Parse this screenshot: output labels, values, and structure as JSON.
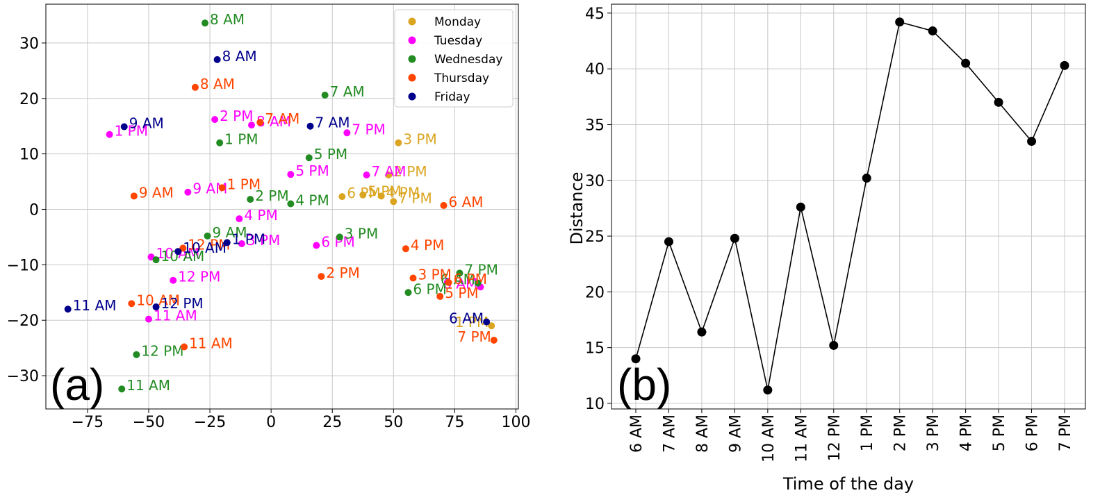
{
  "chart_data": [
    {
      "type": "scatter",
      "panel_label": "(a)",
      "xlim": [
        -92,
        101
      ],
      "ylim": [
        -36,
        37
      ],
      "xticks": [
        -75,
        -50,
        -25,
        0,
        25,
        50,
        75,
        100
      ],
      "yticks": [
        -30,
        -20,
        -10,
        0,
        10,
        20,
        30
      ],
      "grid": true,
      "legend_position": "top-right",
      "series": [
        {
          "name": "Monday",
          "color": "#DAA520",
          "points": [
            {
              "label": "3 PM",
              "x": 52,
              "y": 12
            },
            {
              "label": "2 PM",
              "x": 48,
              "y": 6.2
            },
            {
              "label": "6 PM",
              "x": 29,
              "y": 2.3
            },
            {
              "label": "5 PM",
              "x": 37.5,
              "y": 2.6
            },
            {
              "label": "4 PM",
              "x": 45,
              "y": 2.4
            },
            {
              "label": "7 PM",
              "x": 50,
              "y": 1.4
            },
            {
              "label": "1 PM",
              "x": 90,
              "y": -21
            }
          ]
        },
        {
          "name": "Tuesday",
          "color": "#FF00FF",
          "points": [
            {
              "label": "1 PM",
              "x": -66,
              "y": 13.5
            },
            {
              "label": "2 PM",
              "x": -23,
              "y": 16.2
            },
            {
              "label": "8 AM",
              "x": -8,
              "y": 15.2
            },
            {
              "label": "7 PM",
              "x": 31,
              "y": 13.8
            },
            {
              "label": "5 PM",
              "x": 8,
              "y": 6.3
            },
            {
              "label": "7 AM",
              "x": 39,
              "y": 6.2
            },
            {
              "label": "9 AM",
              "x": -34,
              "y": 3.1
            },
            {
              "label": "4 PM",
              "x": -13,
              "y": -1.7
            },
            {
              "label": "3 PM",
              "x": -12,
              "y": -6.2
            },
            {
              "label": "6 PM",
              "x": 18.5,
              "y": -6.5
            },
            {
              "label": "10 AM",
              "x": -49,
              "y": -8.6
            },
            {
              "label": "12 PM",
              "x": -40,
              "y": -12.8
            },
            {
              "label": "11 AM",
              "x": -50,
              "y": -19.8
            },
            {
              "label": "6 AM",
              "x": 85.5,
              "y": -14
            }
          ]
        },
        {
          "name": "Wednesday",
          "color": "#228B22",
          "points": [
            {
              "label": "8 AM",
              "x": -27,
              "y": 33.6
            },
            {
              "label": "7 AM",
              "x": 22,
              "y": 20.6
            },
            {
              "label": "1 PM",
              "x": -21,
              "y": 12
            },
            {
              "label": "5 PM",
              "x": 15.5,
              "y": 9.3
            },
            {
              "label": "2 PM",
              "x": -8.5,
              "y": 1.8
            },
            {
              "label": "4 PM",
              "x": 8,
              "y": 1
            },
            {
              "label": "9 AM",
              "x": -26,
              "y": -4.8
            },
            {
              "label": "3 PM",
              "x": 28,
              "y": -5
            },
            {
              "label": "10 AM",
              "x": -47,
              "y": -9.1
            },
            {
              "label": "7 PM",
              "x": 77,
              "y": -11.5
            },
            {
              "label": "6 AM",
              "x": 84.5,
              "y": -13.3
            },
            {
              "label": "6 PM",
              "x": 56,
              "y": -15
            },
            {
              "label": "12 PM",
              "x": -55,
              "y": -26.2
            },
            {
              "label": "11 AM",
              "x": -61,
              "y": -32.4
            }
          ]
        },
        {
          "name": "Thursday",
          "color": "#FF4500",
          "points": [
            {
              "label": "8 AM",
              "x": -31,
              "y": 22
            },
            {
              "label": "7 AM",
              "x": -4.5,
              "y": 15.7
            },
            {
              "label": "9 AM",
              "x": -56,
              "y": 2.4
            },
            {
              "label": "1 PM",
              "x": -20,
              "y": 3.9
            },
            {
              "label": "6 AM",
              "x": 70.5,
              "y": 0.7
            },
            {
              "label": "12 PM",
              "x": -36,
              "y": -7
            },
            {
              "label": "4 PM",
              "x": 55,
              "y": -7.1
            },
            {
              "label": "2 PM",
              "x": 20.5,
              "y": -12.1
            },
            {
              "label": "3 PM",
              "x": 58,
              "y": -12.4
            },
            {
              "label": "6 PM",
              "x": 72.5,
              "y": -13.2
            },
            {
              "label": "5 PM",
              "x": 69,
              "y": -15.7
            },
            {
              "label": "10 AM",
              "x": -57,
              "y": -17
            },
            {
              "label": "11 AM",
              "x": -35.5,
              "y": -24.8
            },
            {
              "label": "7 PM",
              "x": 91,
              "y": -23.6
            }
          ]
        },
        {
          "name": "Friday",
          "color": "#00008B",
          "points": [
            {
              "label": "8 AM",
              "x": -22,
              "y": 27
            },
            {
              "label": "9 AM",
              "x": -60,
              "y": 14.9
            },
            {
              "label": "7 AM",
              "x": 16,
              "y": 15
            },
            {
              "label": "1 PM",
              "x": -18,
              "y": -6
            },
            {
              "label": "10 AM",
              "x": -38,
              "y": -7.6
            },
            {
              "label": "12 PM",
              "x": -47,
              "y": -17.6
            },
            {
              "label": "11 AM",
              "x": -83,
              "y": -18
            },
            {
              "label": "6 AM",
              "x": 88,
              "y": -20.3
            }
          ]
        }
      ]
    },
    {
      "type": "line",
      "panel_label": "(b)",
      "xlabel": "Time of the day",
      "ylabel": "Distance",
      "ylim": [
        9.5,
        45.8
      ],
      "yticks": [
        10,
        15,
        20,
        25,
        30,
        35,
        40,
        45
      ],
      "grid": true,
      "color": "#000000",
      "categories": [
        "6 AM",
        "7 AM",
        "8 AM",
        "9 AM",
        "10 AM",
        "11 AM",
        "12 PM",
        "1 PM",
        "2 PM",
        "3 PM",
        "4 PM",
        "5 PM",
        "6 PM",
        "7 PM"
      ],
      "values": [
        14.0,
        24.5,
        16.4,
        24.8,
        11.2,
        27.6,
        15.2,
        30.2,
        44.2,
        43.4,
        40.5,
        37.0,
        33.5,
        40.3
      ]
    }
  ]
}
